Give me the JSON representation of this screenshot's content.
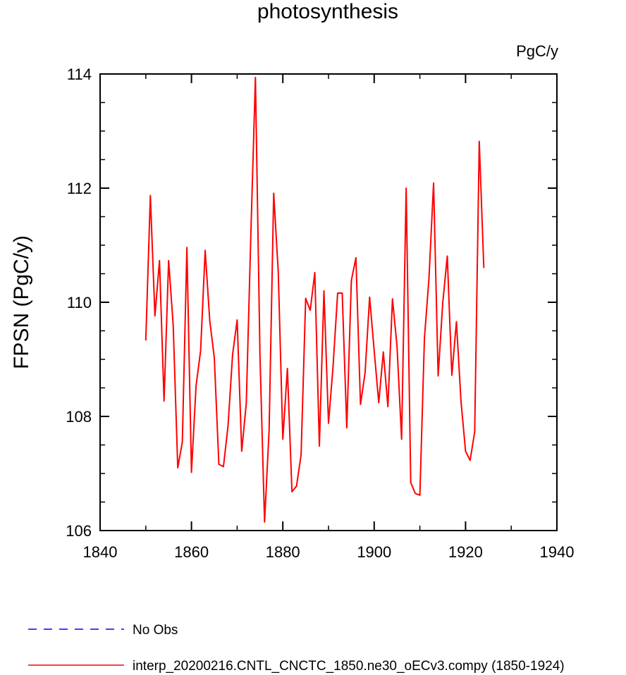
{
  "chart_data": {
    "type": "line",
    "title": "photosynthesis",
    "units": "PgC/y",
    "xlabel": "",
    "ylabel": "FPSN  (PgC/y)",
    "xlim": [
      1840,
      1940
    ],
    "ylim": [
      106,
      114
    ],
    "x_ticks": [
      1840,
      1860,
      1880,
      1900,
      1920,
      1940
    ],
    "y_ticks": [
      106,
      108,
      110,
      112,
      114
    ],
    "x_ticks_minor": [
      1850,
      1870,
      1890,
      1910,
      1930
    ],
    "y_ticks_minor": [
      106.5,
      107,
      107.5,
      108.5,
      109,
      109.5,
      110.5,
      111,
      111.5,
      112.5,
      113,
      113.5
    ],
    "grid": false,
    "legend_placement": "bottom-left",
    "series": [
      {
        "name": "interp_20200216.CNTL_CNCTC_1850.ne30_oECv3.compy (1850-1924)",
        "color": "#ff0000",
        "style": "solid",
        "x": [
          1850,
          1851,
          1852,
          1853,
          1854,
          1855,
          1856,
          1857,
          1858,
          1859,
          1860,
          1861,
          1862,
          1863,
          1864,
          1865,
          1866,
          1867,
          1868,
          1869,
          1870,
          1871,
          1872,
          1873,
          1874,
          1875,
          1876,
          1877,
          1878,
          1879,
          1880,
          1881,
          1882,
          1883,
          1884,
          1885,
          1886,
          1887,
          1888,
          1889,
          1890,
          1891,
          1892,
          1893,
          1894,
          1895,
          1896,
          1897,
          1898,
          1899,
          1900,
          1901,
          1902,
          1903,
          1904,
          1905,
          1906,
          1907,
          1908,
          1909,
          1910,
          1911,
          1912,
          1913,
          1914,
          1915,
          1916,
          1917,
          1918,
          1919,
          1920,
          1921,
          1922,
          1923,
          1924
        ],
        "values": [
          109.33,
          111.87,
          109.76,
          110.73,
          108.27,
          110.73,
          109.6,
          107.1,
          107.55,
          110.96,
          107.02,
          108.53,
          109.15,
          110.91,
          109.68,
          109.03,
          107.16,
          107.12,
          107.83,
          109.08,
          109.69,
          107.39,
          108.23,
          111.19,
          113.94,
          109.06,
          106.15,
          107.76,
          111.91,
          110.53,
          107.6,
          108.84,
          106.68,
          106.78,
          107.33,
          110.07,
          109.86,
          110.52,
          107.48,
          110.2,
          107.88,
          108.88,
          110.16,
          110.16,
          107.8,
          110.38,
          110.78,
          108.21,
          108.76,
          110.09,
          109.15,
          108.24,
          109.13,
          108.17,
          110.06,
          109.23,
          107.6,
          112.0,
          106.84,
          106.65,
          106.62,
          109.37,
          110.43,
          112.09,
          108.71,
          109.98,
          110.81,
          108.72,
          109.66,
          108.27,
          107.39,
          107.23,
          107.73,
          112.82,
          110.6
        ]
      },
      {
        "name": "No Obs",
        "color": "#0000ff",
        "style": "dashed",
        "x": [],
        "values": []
      }
    ]
  }
}
